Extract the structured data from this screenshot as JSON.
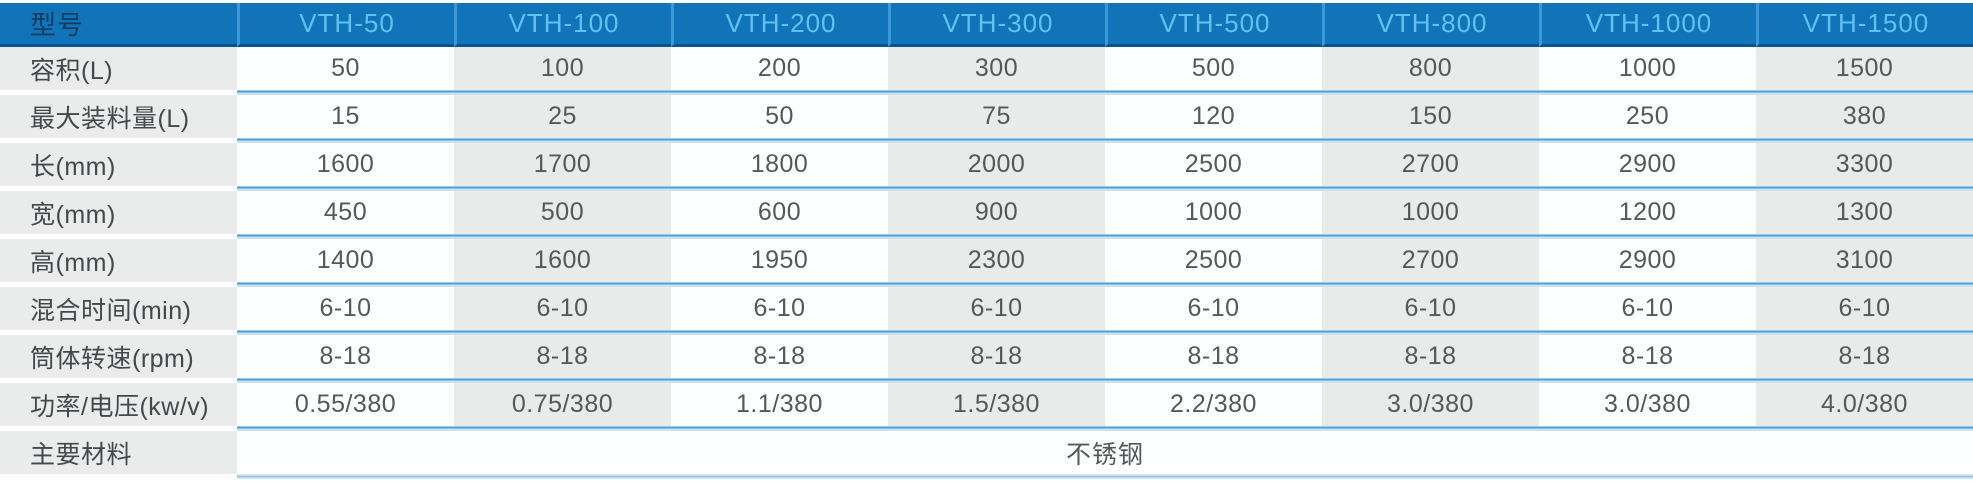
{
  "table": {
    "header": {
      "label": "型号",
      "models": [
        "VTH-50",
        "VTH-100",
        "VTH-200",
        "VTH-300",
        "VTH-500",
        "VTH-800",
        "VTH-1000",
        "VTH-1500"
      ]
    },
    "rows": [
      {
        "label": "容积(L)",
        "values": [
          "50",
          "100",
          "200",
          "300",
          "500",
          "800",
          "1000",
          "1500"
        ]
      },
      {
        "label": "最大装料量(L)",
        "values": [
          "15",
          "25",
          "50",
          "75",
          "120",
          "150",
          "250",
          "380"
        ]
      },
      {
        "label": "长(mm)",
        "values": [
          "1600",
          "1700",
          "1800",
          "2000",
          "2500",
          "2700",
          "2900",
          "3300"
        ]
      },
      {
        "label": "宽(mm)",
        "values": [
          "450",
          "500",
          "600",
          "900",
          "1000",
          "1000",
          "1200",
          "1300"
        ]
      },
      {
        "label": "高(mm)",
        "values": [
          "1400",
          "1600",
          "1950",
          "2300",
          "2500",
          "2700",
          "2900",
          "3100"
        ]
      },
      {
        "label": "混合时间(min)",
        "values": [
          "6-10",
          "6-10",
          "6-10",
          "6-10",
          "6-10",
          "6-10",
          "6-10",
          "6-10"
        ]
      },
      {
        "label": "筒体转速(rpm)",
        "values": [
          "8-18",
          "8-18",
          "8-18",
          "8-18",
          "8-18",
          "8-18",
          "8-18",
          "8-18"
        ]
      },
      {
        "label": "功率/电压(kw/v)",
        "values": [
          "0.55/380",
          "0.75/380",
          "1.1/380",
          "1.5/380",
          "2.2/380",
          "3.0/380",
          "3.0/380",
          "4.0/380"
        ]
      }
    ],
    "material_row": {
      "label": "主要材料",
      "value": "不锈钢"
    }
  },
  "colors": {
    "header_bg": "#1274b8",
    "header_dark_line": "#0a5391",
    "header_divider": "#3f98d3",
    "header_model_text": "#62c1ee",
    "header_label_text": "#0e3c62",
    "label_bg": "#eaebeb",
    "label_text": "#45484a",
    "cell_white": "#fdfefe",
    "cell_gray": "#e9eaea",
    "value_text": "#55585a",
    "separator_dark": "#4f9fd3",
    "separator_light": "#c9e3f3",
    "bottom_line": "#93c6e6"
  }
}
